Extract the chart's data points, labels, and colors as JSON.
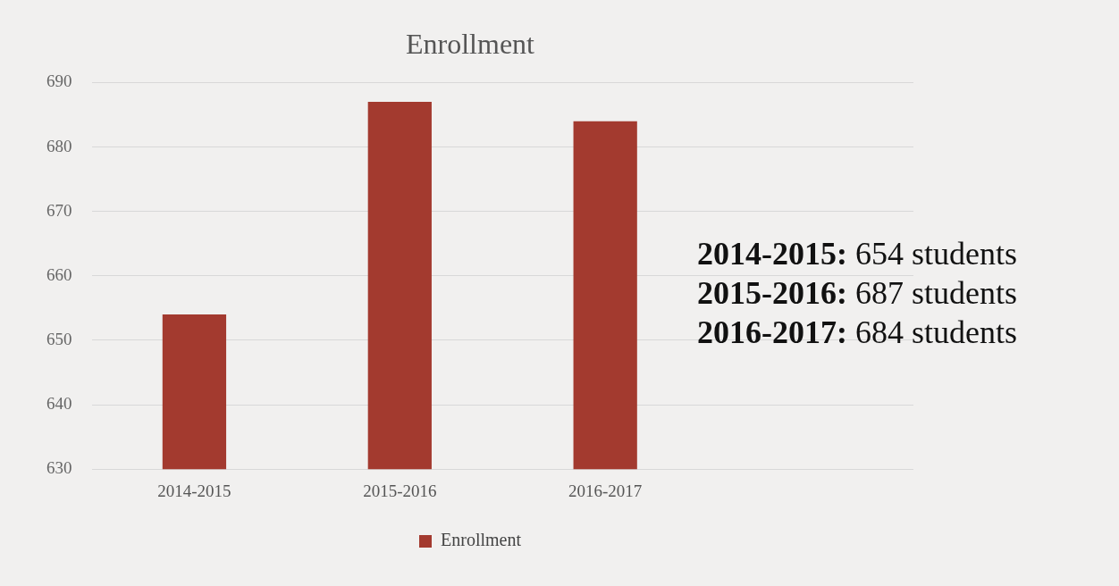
{
  "chart_data": {
    "type": "bar",
    "title": "Enrollment",
    "categories": [
      "2014-2015",
      "2015-2016",
      "2016-2017",
      null
    ],
    "series": [
      {
        "name": "Enrollment",
        "color": "#a33a2f",
        "values": [
          654,
          687,
          684,
          null
        ]
      }
    ],
    "ylim": [
      630,
      690
    ],
    "yticks": [
      630,
      640,
      650,
      660,
      670,
      680,
      690
    ],
    "grid": "y",
    "legend": "bottom",
    "annotations": [
      "2014-2015: 654 students",
      "2015-2016: 687 students",
      "2016-2017: 684 students"
    ]
  }
}
